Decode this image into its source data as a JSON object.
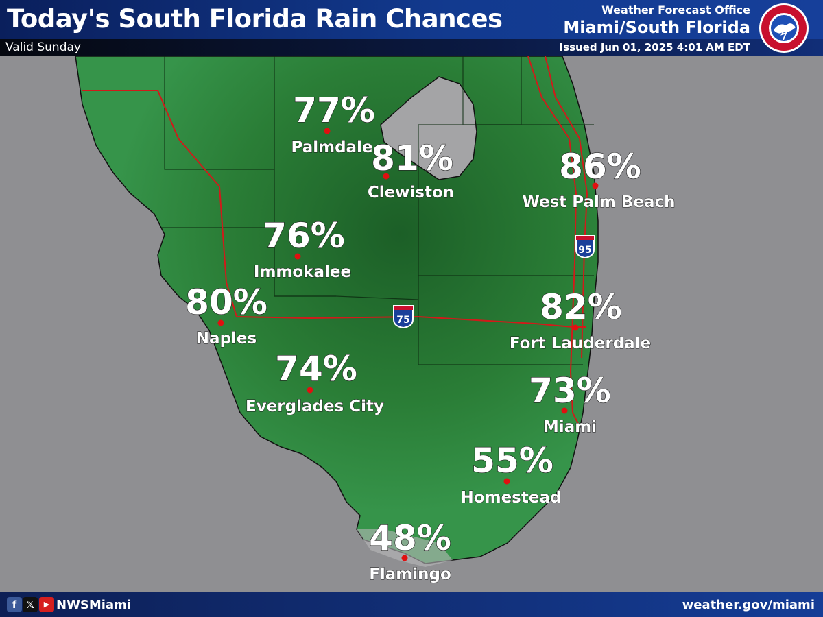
{
  "header": {
    "title": "Today's South Florida Rain Chances",
    "valid": "Valid Sunday",
    "office_line1": "Weather Forecast Office",
    "office_line2": "Miami/South Florida",
    "issued": "Issued Jun 01, 2025 4:01 AM EDT",
    "logo_text": "NATIONAL WEATHER SERVICE"
  },
  "map": {
    "highways": [
      {
        "label": "95",
        "icon": "interstate-shield-icon"
      },
      {
        "label": "75",
        "icon": "interstate-shield-icon"
      }
    ],
    "locations": [
      {
        "name": "Palmdale",
        "chance": "77%"
      },
      {
        "name": "Clewiston",
        "chance": "81%"
      },
      {
        "name": "West Palm Beach",
        "chance": "86%"
      },
      {
        "name": "Immokalee",
        "chance": "76%"
      },
      {
        "name": "Naples",
        "chance": "80%"
      },
      {
        "name": "Fort Lauderdale",
        "chance": "82%"
      },
      {
        "name": "Everglades City",
        "chance": "74%"
      },
      {
        "name": "Miami",
        "chance": "73%"
      },
      {
        "name": "Homestead",
        "chance": "55%"
      },
      {
        "name": "Flamingo",
        "chance": "48%"
      }
    ],
    "colors": {
      "land": "#2f8a3c",
      "land_dark": "#1e6b2a",
      "water": "#8f8f92",
      "lake": "#a6a6a8",
      "roads": "#d11a1a",
      "dot": "#e01010"
    }
  },
  "footer": {
    "handle": "NWSMiami",
    "website": "weather.gov/miami",
    "social_icons": [
      "facebook-icon",
      "x-icon",
      "youtube-icon"
    ]
  }
}
